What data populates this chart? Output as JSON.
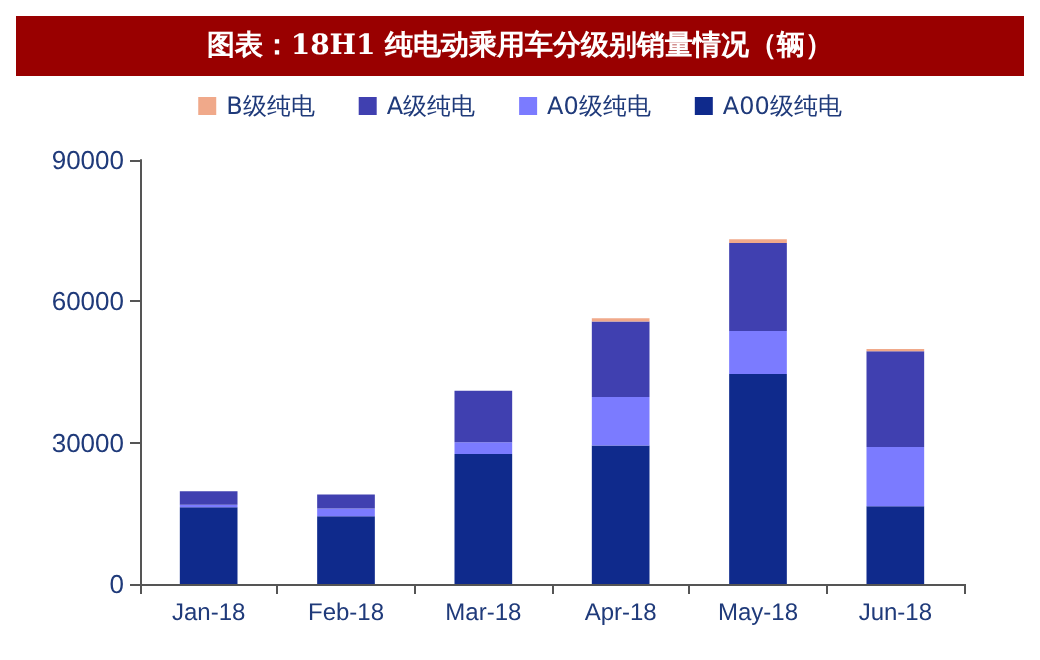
{
  "chart_data": {
    "type": "bar",
    "title": "图表：18H1 纯电动乘用车分级别销量情况（辆）",
    "stacked": true,
    "categories": [
      "Jan-18",
      "Feb-18",
      "Mar-18",
      "Apr-18",
      "May-18",
      "Jun-18"
    ],
    "series": [
      {
        "name": "A00级纯电",
        "color": "#0f2a8c",
        "values": [
          16300,
          14400,
          27600,
          29400,
          44600,
          16500
        ]
      },
      {
        "name": "A0级纯电",
        "color": "#7b7bff",
        "values": [
          500,
          1600,
          2500,
          10300,
          9100,
          12600
        ]
      },
      {
        "name": "A级纯电",
        "color": "#4040b0",
        "values": [
          2900,
          3000,
          10900,
          16000,
          18700,
          20300
        ]
      },
      {
        "name": "B级纯电",
        "color": "#f0a98a",
        "values": [
          0,
          0,
          0,
          700,
          800,
          500
        ]
      }
    ],
    "ylim": [
      0,
      90000
    ],
    "yticks": [
      0,
      30000,
      60000,
      90000
    ],
    "grid": false,
    "legend": "top"
  }
}
